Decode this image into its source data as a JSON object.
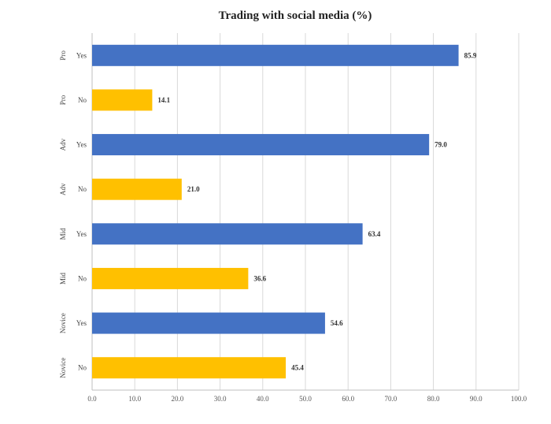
{
  "chart_data": {
    "type": "bar",
    "orientation": "horizontal",
    "title": "Trading with social media (%)",
    "xlabel": "",
    "ylabel": "",
    "xlim": [
      0,
      100
    ],
    "x_ticks": [
      "0.0",
      "10.0",
      "20.0",
      "30.0",
      "40.0",
      "50.0",
      "60.0",
      "70.0",
      "80.0",
      "90.0",
      "100.0"
    ],
    "grid": true,
    "legend": "none",
    "categories": [
      {
        "group": "Pro",
        "label": "Yes",
        "value": 85.9,
        "value_label": "85.9",
        "color": "#4472C4"
      },
      {
        "group": "Pro",
        "label": "No",
        "value": 14.1,
        "value_label": "14.1",
        "color": "#FFC000"
      },
      {
        "group": "Adv",
        "label": "Yes",
        "value": 79.0,
        "value_label": "79.0",
        "color": "#4472C4"
      },
      {
        "group": "Adv",
        "label": "No",
        "value": 21.0,
        "value_label": "21.0",
        "color": "#FFC000"
      },
      {
        "group": "Mid",
        "label": "Yes",
        "value": 63.4,
        "value_label": "63.4",
        "color": "#4472C4"
      },
      {
        "group": "Mid",
        "label": "No",
        "value": 36.6,
        "value_label": "36.6",
        "color": "#FFC000"
      },
      {
        "group": "Novice",
        "label": "Yes",
        "value": 54.6,
        "value_label": "54.6",
        "color": "#4472C4"
      },
      {
        "group": "Novice",
        "label": "No",
        "value": 45.4,
        "value_label": "45.4",
        "color": "#FFC000"
      }
    ]
  }
}
